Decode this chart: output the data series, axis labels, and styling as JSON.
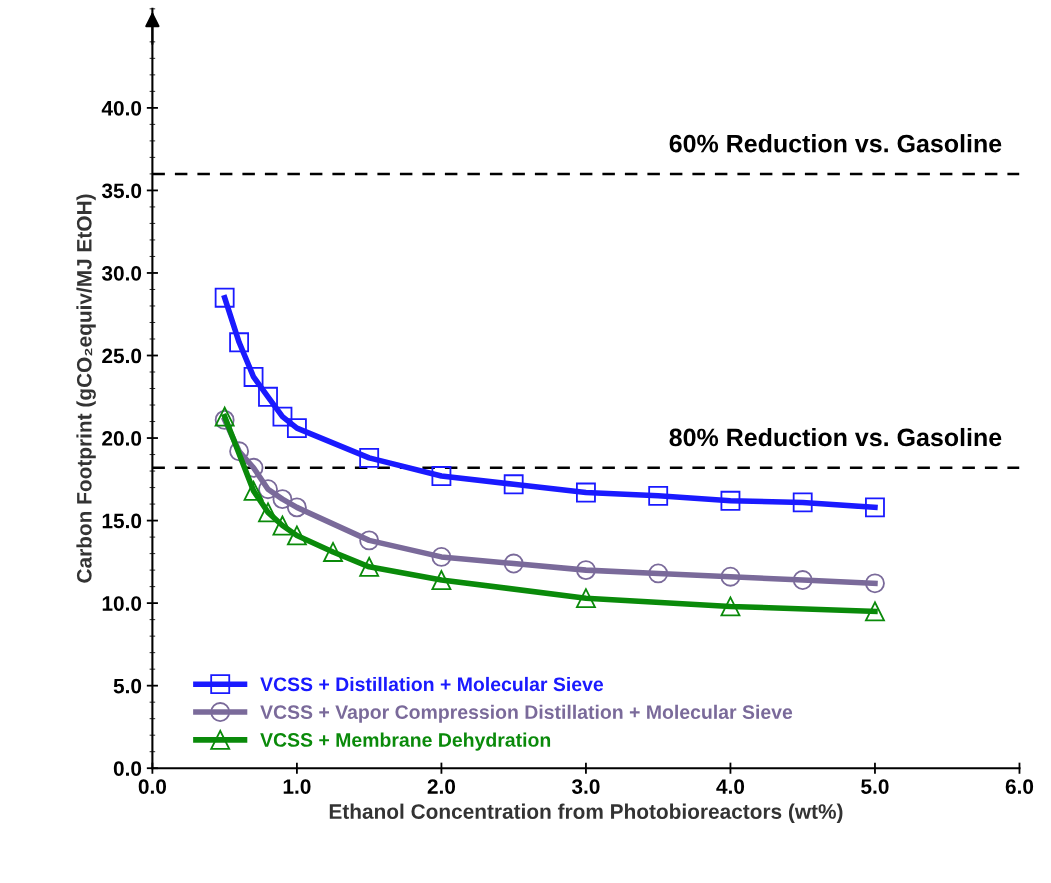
{
  "chart_data": {
    "type": "line",
    "xlabel": "Ethanol Concentration from Photobioreactors (wt%)",
    "ylabel": "Carbon Footprint (gCO₂equiv/MJ EtOH)",
    "xlim": [
      0,
      6
    ],
    "xticks": [
      {
        "value": 0,
        "label": "0.0"
      },
      {
        "value": 1,
        "label": "1.0"
      },
      {
        "value": 2,
        "label": "2.0"
      },
      {
        "value": 3,
        "label": "3.0"
      },
      {
        "value": 4,
        "label": "4.0"
      },
      {
        "value": 5,
        "label": "5.0"
      },
      {
        "value": 6,
        "label": "6.0"
      }
    ],
    "ylim": [
      0,
      46
    ],
    "yticks": [
      {
        "value": 0,
        "label": "0.0"
      },
      {
        "value": 5,
        "label": "5.0"
      },
      {
        "value": 10,
        "label": "10.0"
      },
      {
        "value": 15,
        "label": "15.0"
      },
      {
        "value": 20,
        "label": "20.0"
      },
      {
        "value": 25,
        "label": "25.0"
      },
      {
        "value": 30,
        "label": "30.0"
      },
      {
        "value": 35,
        "label": "35.0"
      },
      {
        "value": 40,
        "label": "40.0"
      }
    ],
    "grid": false,
    "legend": "bottom left",
    "line_style": "solid",
    "ref_lines": [
      {
        "axis": "y",
        "value": 36.0,
        "label": "60% Reduction vs. Gasoline",
        "color": "#000000",
        "line_style": "dashed"
      },
      {
        "axis": "y",
        "value": 18.2,
        "label": "80% Reduction vs. Gasoline",
        "color": "#000000",
        "line_style": "dashed"
      }
    ],
    "series": [
      {
        "name": "VCSS + Distillation + Molecular Sieve",
        "color": "#1a1aff",
        "marker": "square",
        "x": [
          0.5,
          0.6,
          0.7,
          0.8,
          0.9,
          1.0,
          1.5,
          2.0,
          2.5,
          3.0,
          3.5,
          4.0,
          4.5,
          5.0
        ],
        "values": [
          28.5,
          25.8,
          23.7,
          22.5,
          21.3,
          20.6,
          18.8,
          17.7,
          17.2,
          16.7,
          16.5,
          16.2,
          16.1,
          15.8
        ]
      },
      {
        "name": "VCSS + Vapor Compression Distillation + Molecular Sieve",
        "color": "#7a6a9a",
        "marker": "circle",
        "x": [
          0.5,
          0.6,
          0.7,
          0.8,
          0.9,
          1.0,
          1.5,
          2.0,
          2.5,
          3.0,
          3.5,
          4.0,
          4.5,
          5.0
        ],
        "values": [
          21.1,
          19.2,
          18.2,
          16.9,
          16.3,
          15.8,
          13.8,
          12.8,
          12.4,
          12.0,
          11.8,
          11.6,
          11.4,
          11.2
        ]
      },
      {
        "name": "VCSS + Membrane Dehydration",
        "color": "#0a8a0a",
        "marker": "triangle",
        "x": [
          0.5,
          0.7,
          0.8,
          0.9,
          1.0,
          1.25,
          1.5,
          2.0,
          3.0,
          4.0,
          5.0
        ],
        "values": [
          21.3,
          16.8,
          15.5,
          14.7,
          14.1,
          13.1,
          12.2,
          11.4,
          10.3,
          9.8,
          9.5
        ]
      }
    ]
  }
}
